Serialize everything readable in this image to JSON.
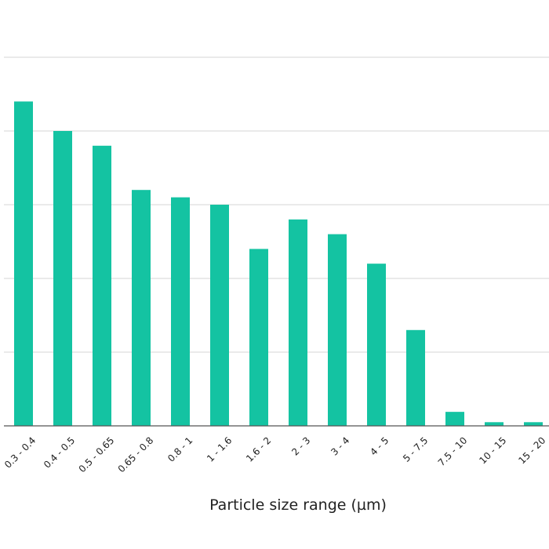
{
  "chart_data": {
    "type": "bar",
    "categories": [
      "0.3 - 0.4",
      "0.4 - 0.5",
      "0.5 - 0.65",
      "0.65 - 0.8",
      "0.8 - 1",
      "1 - 1.6",
      "1.6 - 2",
      "2 - 3",
      "3 - 4",
      "4 - 5",
      "5 - 7.5",
      "7.5 - 10",
      "10 - 15",
      "15 - 20"
    ],
    "values": [
      4.4,
      4.0,
      3.8,
      3.2,
      3.1,
      3.0,
      2.4,
      2.8,
      2.6,
      2.2,
      1.3,
      0.19,
      0.05,
      0.05
    ],
    "title": "",
    "xlabel": "Particle size range (µm)",
    "ylabel": "",
    "ylim": [
      0,
      5
    ],
    "grid": true,
    "bar_color": "#14c3a2"
  }
}
